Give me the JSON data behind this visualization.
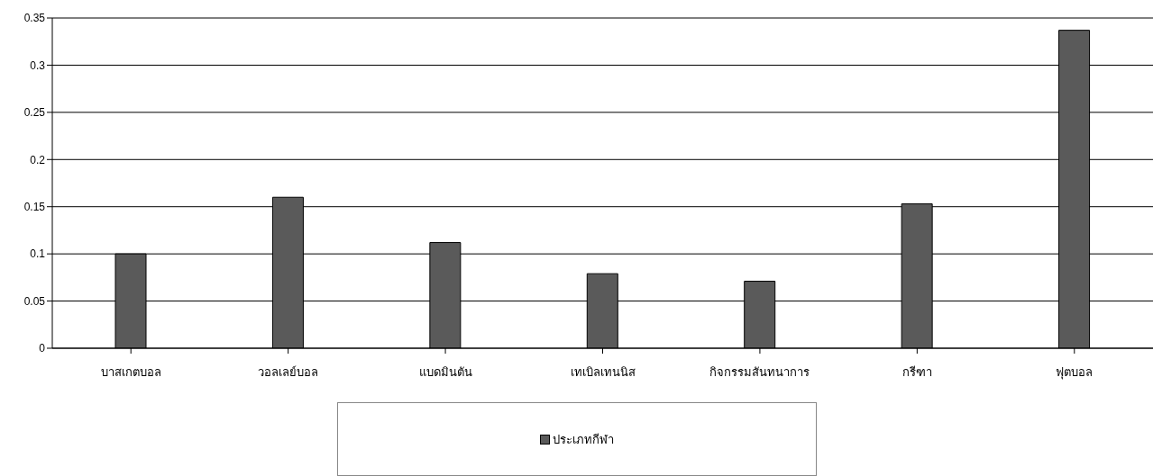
{
  "chart_data": {
    "type": "bar",
    "categories": [
      "บาสเกตบอล",
      "วอลเลย์บอล",
      "แบดมินตัน",
      "เทเบิลเทนนิส",
      "กิจกรรมสันทนาการ",
      "กรีฑา",
      "ฟุตบอล"
    ],
    "series": [
      {
        "name": "ประเภทกีฬา",
        "color": "#5a5a5a",
        "values": [
          0.1,
          0.16,
          0.112,
          0.079,
          0.071,
          0.153,
          0.337
        ]
      }
    ],
    "ylim": [
      0,
      0.35
    ],
    "yticks": [
      0,
      0.05,
      0.1,
      0.15,
      0.2,
      0.25,
      0.3,
      0.35
    ],
    "grid": "y",
    "legend": "bottom"
  }
}
